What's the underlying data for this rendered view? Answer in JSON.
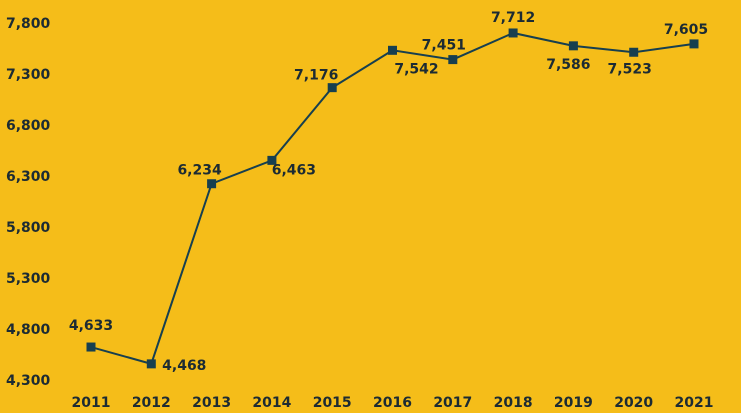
{
  "chart_data": {
    "type": "line",
    "categories": [
      "2011",
      "2012",
      "2013",
      "2014",
      "2015",
      "2016",
      "2017",
      "2018",
      "2019",
      "2020",
      "2021"
    ],
    "series": [
      {
        "color": "#173f4f",
        "values": [
          4633,
          4468,
          6234,
          6463,
          7176,
          7542,
          7451,
          7712,
          7586,
          7523,
          7605
        ],
        "value_labels": [
          "4,633",
          "4,468",
          "6,234",
          "6,463",
          "7,176",
          "7,542",
          "7,451",
          "7,712",
          "7,586",
          "7,523",
          "7,605"
        ]
      }
    ],
    "ylim": [
      4300,
      7800
    ],
    "yticks": [
      {
        "value": 4300,
        "label": "4,300"
      },
      {
        "value": 4800,
        "label": "4,800"
      },
      {
        "value": 5300,
        "label": "5,300"
      },
      {
        "value": 5800,
        "label": "5,800"
      },
      {
        "value": 6300,
        "label": "6,300"
      },
      {
        "value": 6800,
        "label": "6,800"
      },
      {
        "value": 7300,
        "label": "7,300"
      },
      {
        "value": 7800,
        "label": "7,800"
      }
    ],
    "background": "#f5bd19"
  }
}
